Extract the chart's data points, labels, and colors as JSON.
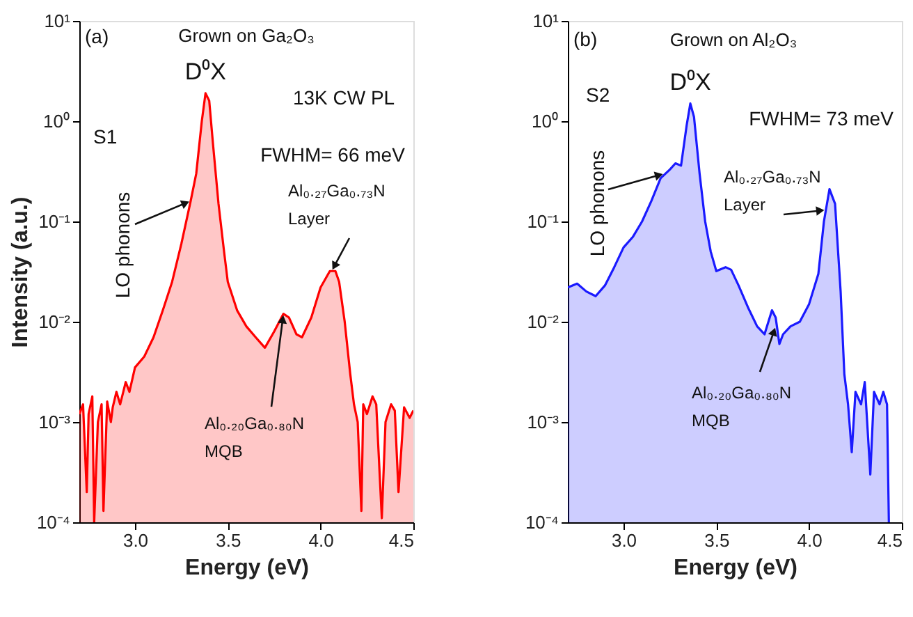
{
  "chart_data": [
    {
      "type": "area",
      "xlabel": "Energy (eV)",
      "ylabel": "Intensity (a.u.)",
      "log": true,
      "grid": false,
      "xlim": [
        2.7,
        4.5
      ],
      "ylim": [
        0.0001,
        10
      ],
      "xticks": [
        {
          "value": 3,
          "label": "3.0"
        },
        {
          "value": 3.5,
          "label": "3.5"
        },
        {
          "value": 4,
          "label": "4.0"
        },
        {
          "value": 4.5,
          "label": "4.5"
        }
      ],
      "yticks": [
        {
          "value": 0.0001,
          "label": "10⁻⁴"
        },
        {
          "value": 0.001,
          "label": "10⁻³"
        },
        {
          "value": 0.01,
          "label": "10⁻²"
        },
        {
          "value": 0.1,
          "label": "10⁻¹"
        },
        {
          "value": 1,
          "label": "10⁰"
        },
        {
          "value": 10,
          "label": "10¹"
        }
      ],
      "x": [
        2.7,
        2.72,
        2.74,
        2.75,
        2.77,
        2.78,
        2.8,
        2.82,
        2.83,
        2.85,
        2.87,
        2.88,
        2.9,
        2.92,
        2.95,
        2.97,
        3.0,
        3.05,
        3.1,
        3.15,
        3.2,
        3.25,
        3.3,
        3.33,
        3.36,
        3.38,
        3.4,
        3.42,
        3.45,
        3.48,
        3.5,
        3.55,
        3.6,
        3.65,
        3.7,
        3.75,
        3.8,
        3.83,
        3.87,
        3.9,
        3.95,
        4.0,
        4.05,
        4.08,
        4.1,
        4.13,
        4.16,
        4.18,
        4.2,
        4.22,
        4.23,
        4.25,
        4.28,
        4.3,
        4.33,
        4.35,
        4.38,
        4.4,
        4.42,
        4.45,
        4.48,
        4.5
      ],
      "series": [
        {
          "color": "#ff0000",
          "values": [
            0.0012,
            0.0015,
            0.0002,
            0.0012,
            0.0018,
            0.0001,
            0.001,
            0.0015,
            0.00013,
            0.0016,
            0.001,
            0.0014,
            0.002,
            0.0015,
            0.0025,
            0.002,
            0.0035,
            0.0045,
            0.007,
            0.013,
            0.025,
            0.06,
            0.16,
            0.3,
            1.0,
            1.9,
            1.6,
            0.6,
            0.15,
            0.05,
            0.025,
            0.013,
            0.009,
            0.007,
            0.0055,
            0.008,
            0.012,
            0.011,
            0.0075,
            0.007,
            0.011,
            0.022,
            0.032,
            0.032,
            0.025,
            0.01,
            0.003,
            0.0015,
            0.001,
            0.00013,
            0.0015,
            0.0012,
            0.0018,
            0.0015,
            0.00011,
            0.001,
            0.0015,
            0.0013,
            0.0002,
            0.0014,
            0.0011,
            0.0013
          ]
        }
      ],
      "annotations": [
        "(a)",
        "Grown on Ga₂O₃",
        {
          "text": "D⁰X",
          "x": 3.38,
          "y": 1.9
        },
        "13K CW PL",
        "S1",
        "FWHM= 66 meV",
        {
          "text": "LO phonons",
          "x": 3.3,
          "y": 0.16
        },
        {
          "text": "Al₀.₂₇Ga₀.₇₃N\nLayer",
          "x": 4.06,
          "y": 0.032
        },
        {
          "text": "Al₀.₂₀Ga₀.₈₀N\nMQB",
          "x": 3.8,
          "y": 0.012
        }
      ]
    },
    {
      "type": "area",
      "xlabel": "Energy (eV)",
      "log": true,
      "grid": false,
      "xlim": [
        2.7,
        4.5
      ],
      "ylim": [
        0.0001,
        10
      ],
      "xticks": [
        {
          "value": 3,
          "label": "3.0"
        },
        {
          "value": 3.5,
          "label": "3.5"
        },
        {
          "value": 4,
          "label": "4.0"
        },
        {
          "value": 4.5,
          "label": "4.5"
        }
      ],
      "yticks": [
        {
          "value": 0.0001,
          "label": "10⁻⁴"
        },
        {
          "value": 0.001,
          "label": "10⁻³"
        },
        {
          "value": 0.01,
          "label": "10⁻²"
        },
        {
          "value": 0.1,
          "label": "10⁻¹"
        },
        {
          "value": 1,
          "label": "10⁰"
        },
        {
          "value": 10,
          "label": "10¹"
        }
      ],
      "x": [
        2.7,
        2.75,
        2.8,
        2.85,
        2.9,
        2.95,
        3.0,
        3.05,
        3.1,
        3.15,
        3.2,
        3.25,
        3.28,
        3.31,
        3.34,
        3.36,
        3.38,
        3.41,
        3.44,
        3.47,
        3.5,
        3.55,
        3.58,
        3.62,
        3.67,
        3.72,
        3.76,
        3.8,
        3.82,
        3.84,
        3.86,
        3.9,
        3.95,
        4.0,
        4.05,
        4.08,
        4.11,
        4.14,
        4.17,
        4.19,
        4.21,
        4.23,
        4.25,
        4.28,
        4.3,
        4.33,
        4.35,
        4.38,
        4.4,
        4.42,
        4.43
      ],
      "series": [
        {
          "color": "#1a1aff",
          "values": [
            0.022,
            0.024,
            0.02,
            0.018,
            0.023,
            0.035,
            0.055,
            0.07,
            0.1,
            0.16,
            0.27,
            0.33,
            0.38,
            0.36,
            0.9,
            1.5,
            1.1,
            0.3,
            0.1,
            0.05,
            0.032,
            0.035,
            0.033,
            0.023,
            0.014,
            0.009,
            0.0075,
            0.013,
            0.011,
            0.006,
            0.0075,
            0.009,
            0.01,
            0.015,
            0.03,
            0.1,
            0.21,
            0.15,
            0.02,
            0.003,
            0.0015,
            0.0005,
            0.002,
            0.0015,
            0.0025,
            0.0003,
            0.002,
            0.0015,
            0.002,
            0.0015,
            0.0001
          ]
        }
      ],
      "annotations": [
        "(b)",
        "Grown on Al₂O₃",
        {
          "text": "D⁰X",
          "x": 3.36,
          "y": 1.5
        },
        "S2",
        "FWHM= 73 meV",
        {
          "text": "LO phonons",
          "x": 3.22,
          "y": 0.3
        },
        {
          "text": "Al₀.₂₇Ga₀.₇₃N\nLayer",
          "x": 4.09,
          "y": 0.13
        },
        {
          "text": "Al₀.₂₀Ga₀.₈₀N\nMQB",
          "x": 3.82,
          "y": 0.009
        }
      ]
    }
  ]
}
